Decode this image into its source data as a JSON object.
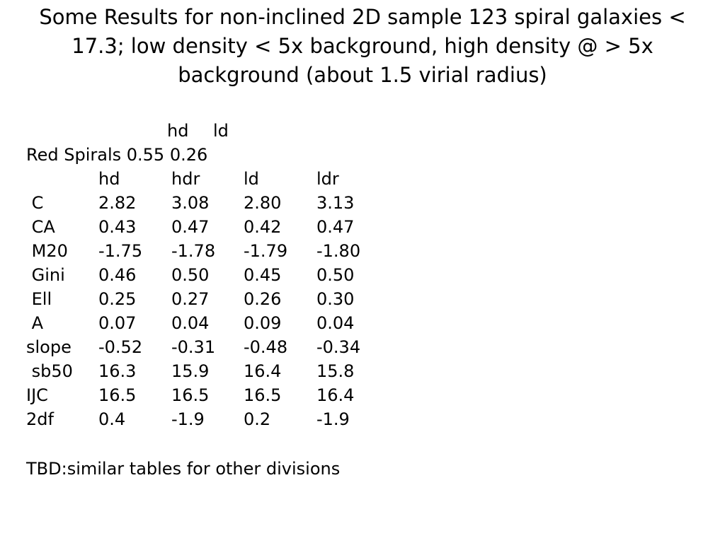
{
  "title": "Some Results for non-inclined 2D sample 123 spiral galaxies < 17.3; low density < 5x background, high density @ > 5x background (about 1.5 virial radius)",
  "small_table": {
    "headers": [
      "hd",
      "ld"
    ],
    "row_label": "Red Spirals",
    "values": [
      "0.55",
      "0.26"
    ]
  },
  "main_table": {
    "headers": [
      "",
      "hd",
      "hdr",
      "ld",
      "ldr"
    ],
    "rows": [
      [
        " C",
        "2.82",
        "3.08",
        "2.80",
        "3.13"
      ],
      [
        " CA",
        "0.43",
        "0.47",
        "0.42",
        "0.47"
      ],
      [
        " M20",
        "-1.75",
        "-1.78",
        "-1.79",
        "-1.80"
      ],
      [
        " Gini",
        "0.46",
        "0.50",
        "0.45",
        "0.50"
      ],
      [
        " Ell",
        "0.25",
        "0.27",
        "0.26",
        "0.30"
      ],
      [
        " A",
        "0.07",
        "0.04",
        "0.09",
        "0.04"
      ],
      [
        "slope",
        "-0.52",
        "-0.31",
        "-0.48",
        "-0.34"
      ],
      [
        " sb50",
        "16.3",
        "15.9",
        "16.4",
        "15.8"
      ],
      [
        "IJC",
        "16.5",
        "16.5",
        "16.5",
        "16.4"
      ],
      [
        "2df",
        "0.4",
        "-1.9",
        "0.2",
        "-1.9"
      ]
    ]
  },
  "footer": "TBD:similar tables for other divisions"
}
